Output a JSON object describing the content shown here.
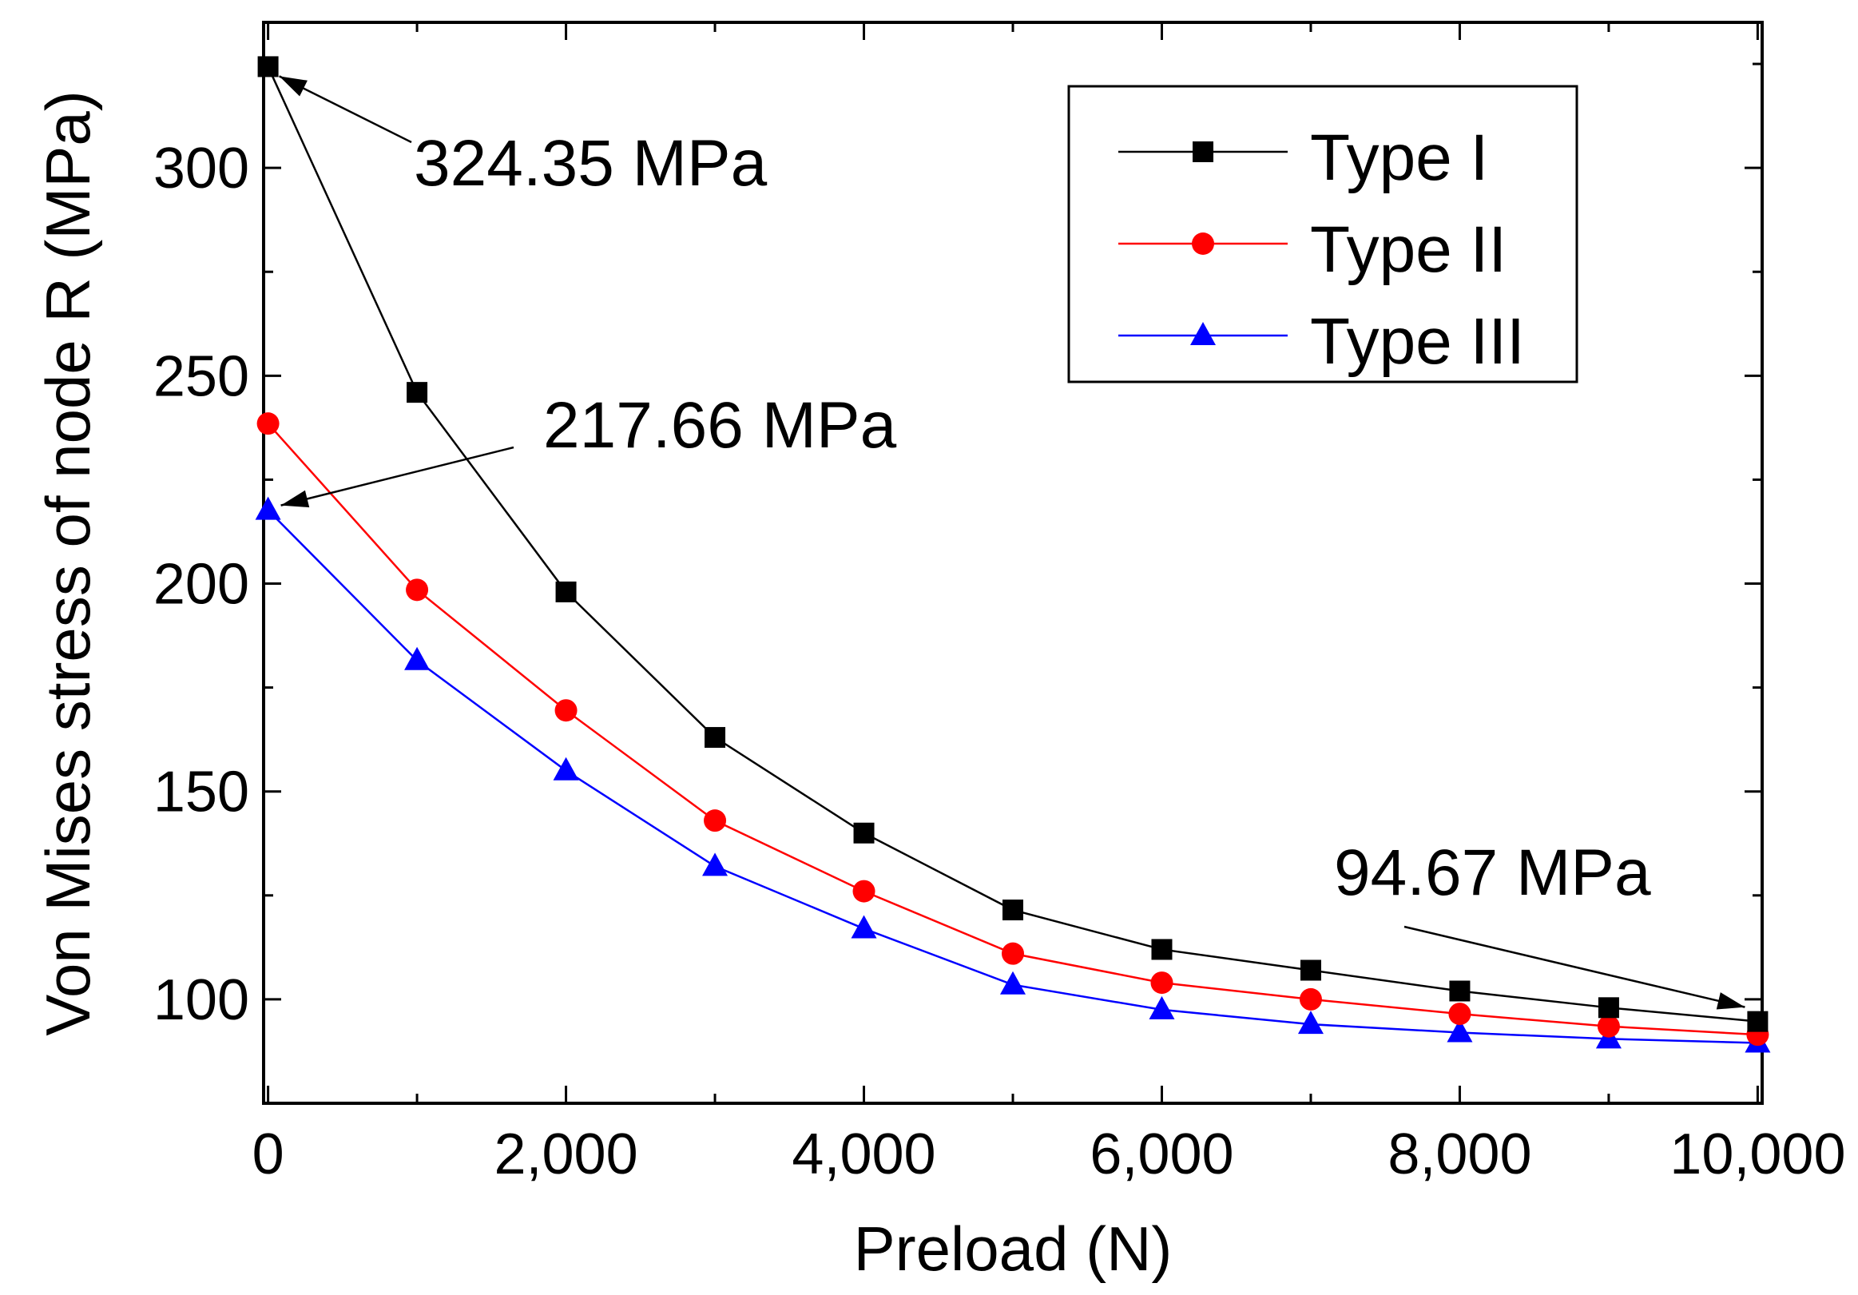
{
  "chart_data": {
    "type": "line",
    "xlabel": "Preload (N)",
    "ylabel": "Von Mises stress of node R (MPa)",
    "xlim": [
      0,
      10000
    ],
    "ylim": [
      75,
      335
    ],
    "xticks": [
      0,
      2000,
      4000,
      6000,
      8000,
      10000
    ],
    "xtick_labels": [
      "0",
      "2,000",
      "4,000",
      "6,000",
      "8,000",
      "10,000"
    ],
    "yticks": [
      100,
      150,
      200,
      250,
      300
    ],
    "ytick_labels": [
      "100",
      "150",
      "200",
      "250",
      "300"
    ],
    "x": [
      0,
      1000,
      2000,
      3000,
      4000,
      5000,
      6000,
      7000,
      8000,
      9000,
      10000
    ],
    "series": [
      {
        "name": "Type I",
        "color": "#000000",
        "marker": "square",
        "values": [
          324.35,
          246,
          198,
          163,
          140,
          121.5,
          112,
          107,
          102,
          98,
          94.67
        ]
      },
      {
        "name": "Type II",
        "color": "#ff0000",
        "marker": "circle",
        "values": [
          238.5,
          198.5,
          169.5,
          143,
          126,
          111,
          104,
          100,
          96.5,
          93.5,
          91.5
        ]
      },
      {
        "name": "Type III",
        "color": "#0000ff",
        "marker": "triangle",
        "values": [
          217.66,
          181.5,
          155,
          132,
          117,
          103.5,
          97.5,
          94,
          92,
          90.5,
          89.5
        ]
      }
    ],
    "legend_position": "top-right",
    "annotations": [
      {
        "text": "324.35 MPa",
        "x": 0,
        "y": 324.35
      },
      {
        "text": "217.66 MPa",
        "x": 0,
        "y": 217.66
      },
      {
        "text": "94.67 MPa",
        "x": 10000,
        "y": 94.67
      }
    ]
  }
}
